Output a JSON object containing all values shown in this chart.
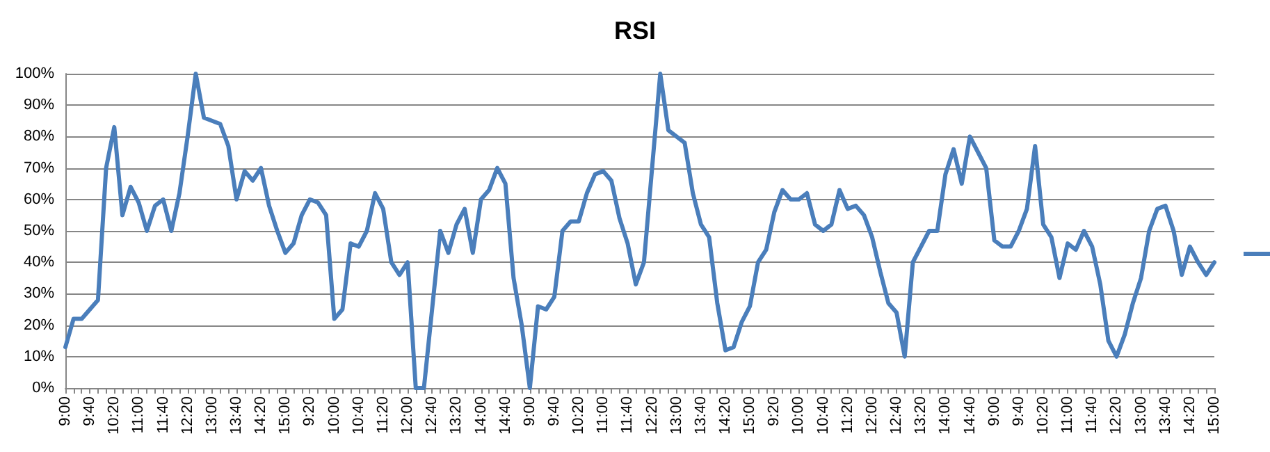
{
  "chart_data": {
    "type": "line",
    "title": "RSI",
    "categories": [
      "9:00",
      null,
      null,
      "9:40",
      null,
      null,
      "10:20",
      null,
      null,
      "11:00",
      null,
      null,
      "11:40",
      null,
      null,
      "12:20",
      null,
      null,
      "13:00",
      null,
      null,
      "13:40",
      null,
      null,
      "14:20",
      null,
      null,
      "15:00",
      null,
      null,
      "9:20",
      null,
      null,
      "10:00",
      null,
      null,
      "10:40",
      null,
      null,
      "11:20",
      null,
      null,
      "12:00",
      null,
      null,
      "12:40",
      null,
      null,
      "13:20",
      null,
      null,
      "14:00",
      null,
      null,
      "14:40",
      null,
      null,
      "9:00",
      null,
      null,
      "9:40",
      null,
      null,
      "10:20",
      null,
      null,
      "11:00",
      null,
      null,
      "11:40",
      null,
      null,
      "12:20",
      null,
      null,
      "13:00",
      null,
      null,
      "13:40",
      null,
      null,
      "14:20",
      null,
      null,
      "15:00",
      null,
      null,
      "9:20",
      null,
      null,
      "10:00",
      null,
      null,
      "10:40",
      null,
      null,
      "11:20",
      null,
      null,
      "12:00",
      null,
      null,
      "12:40",
      null,
      null,
      "13:20",
      null,
      null,
      "14:00",
      null,
      null,
      "14:40",
      null,
      null,
      "9:00",
      null,
      null,
      "9:40",
      null,
      null,
      "10:20",
      null,
      null,
      "11:00",
      null,
      null,
      "11:40",
      null,
      null,
      "12:20",
      null,
      null,
      "13:00",
      null,
      null,
      "13:40",
      null,
      null,
      "14:20",
      null,
      null,
      "15:00"
    ],
    "series": [
      {
        "color": "#4a7ebb",
        "values": [
          13,
          22,
          22,
          25,
          28,
          70,
          83,
          55,
          64,
          59,
          50,
          58,
          60,
          50,
          62,
          80,
          100,
          86,
          85,
          84,
          77,
          60,
          69,
          66,
          70,
          58,
          50,
          43,
          46,
          55,
          60,
          59,
          55,
          22,
          25,
          46,
          45,
          50,
          62,
          57,
          40,
          36,
          40,
          0,
          0,
          25,
          50,
          43,
          52,
          57,
          43,
          60,
          63,
          70,
          65,
          35,
          20,
          0,
          26,
          25,
          29,
          50,
          53,
          53,
          62,
          68,
          69,
          66,
          54,
          46,
          33,
          40,
          70,
          100,
          82,
          80,
          78,
          62,
          52,
          48,
          27,
          12,
          13,
          21,
          26,
          40,
          44,
          56,
          63,
          60,
          60,
          62,
          52,
          50,
          52,
          63,
          57,
          58,
          55,
          48,
          37,
          27,
          24,
          10,
          40,
          45,
          50,
          50,
          68,
          76,
          65,
          80,
          75,
          70,
          47,
          45,
          45,
          50,
          57,
          77,
          52,
          48,
          35,
          46,
          44,
          50,
          45,
          33,
          15,
          10,
          17,
          27,
          35,
          50,
          57,
          58,
          50,
          36,
          45,
          40,
          36,
          40
        ]
      }
    ],
    "ylim": [
      0,
      100
    ],
    "yticks": [
      {
        "value": 0,
        "label": "0%"
      },
      {
        "value": 10,
        "label": "10%"
      },
      {
        "value": 20,
        "label": "20%"
      },
      {
        "value": 30,
        "label": "30%"
      },
      {
        "value": 40,
        "label": "40%"
      },
      {
        "value": 50,
        "label": "50%"
      },
      {
        "value": 60,
        "label": "60%"
      },
      {
        "value": 70,
        "label": "70%"
      },
      {
        "value": 80,
        "label": "80%"
      },
      {
        "value": 90,
        "label": "90%"
      },
      {
        "value": 100,
        "label": "100%"
      }
    ],
    "grid": "y",
    "marker": "none",
    "line_style": "solid"
  }
}
